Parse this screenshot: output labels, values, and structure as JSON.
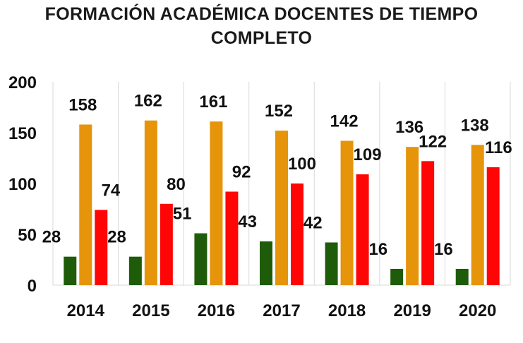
{
  "chart_data": {
    "type": "bar",
    "title_lines": [
      "FORMACIÓN ACADÉMICA DOCENTES DE TIEMPO",
      "COMPLETO"
    ],
    "categories": [
      "2014",
      "2015",
      "2016",
      "2017",
      "2018",
      "2019",
      "2020"
    ],
    "series": [
      {
        "color": "#1e5c0a",
        "values": [
          28,
          28,
          51,
          43,
          42,
          16,
          16
        ]
      },
      {
        "color": "#e6940a",
        "values": [
          158,
          162,
          161,
          152,
          142,
          136,
          138
        ]
      },
      {
        "color": "#ff0505",
        "values": [
          74,
          80,
          92,
          100,
          109,
          122,
          116
        ]
      }
    ],
    "yticks": [
      0,
      50,
      100,
      150,
      200
    ],
    "ylim": [
      0,
      200
    ],
    "grid": "vertical-separators",
    "legend": "none"
  }
}
